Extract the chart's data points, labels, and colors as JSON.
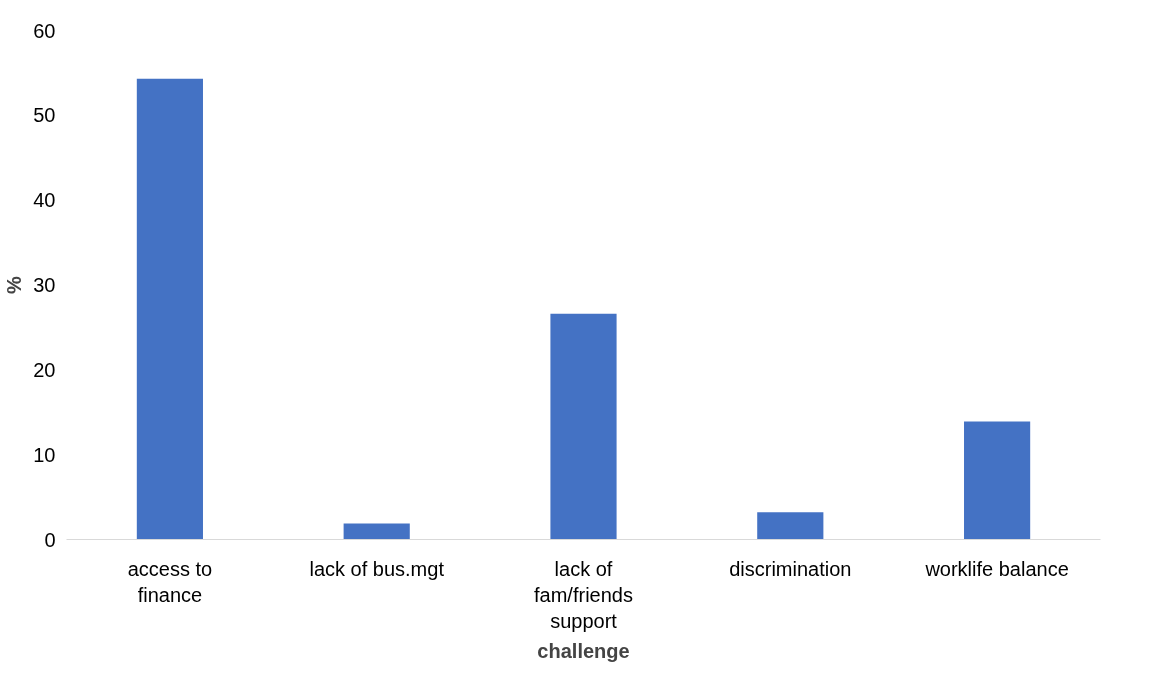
{
  "chart_data": {
    "type": "bar",
    "xlabel": "challenge",
    "ylabel": "%",
    "categories": [
      "access to finance",
      "lack of bus.mgt",
      "lack of fam/friends support",
      "discrimination",
      "worklife balance"
    ],
    "values": [
      54.3,
      1.9,
      26.6,
      3.2,
      13.9
    ],
    "color": "#4472c4",
    "ylim": [
      0,
      60
    ],
    "yticks": [
      0,
      10,
      20,
      30,
      40,
      50,
      60
    ],
    "grid": false
  }
}
